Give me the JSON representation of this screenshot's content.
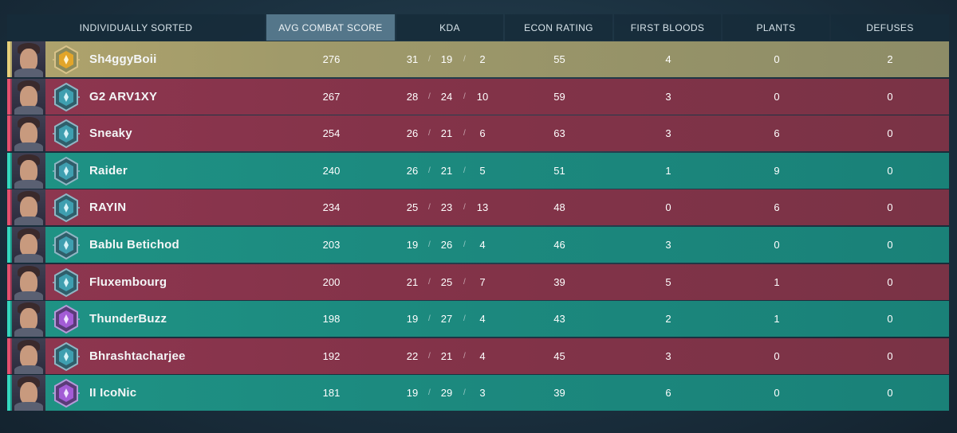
{
  "header": {
    "player_col": "INDIVIDUALLY SORTED",
    "acs_col": "AVG COMBAT SCORE",
    "kda_col": "KDA",
    "econ_col": "ECON RATING",
    "fb_col": "FIRST BLOODS",
    "plants_col": "PLANTS",
    "defuses_col": "DEFUSES"
  },
  "colors": {
    "gold_row": "#a09a6a",
    "red_row": "#843349",
    "teal_row": "#1c8a7f",
    "active_header": "#54768a"
  },
  "players": [
    {
      "name": "Sh4ggyBoii",
      "team": "gold",
      "rank_icon": "gold-rank-icon",
      "acs": "276",
      "k": "31",
      "d": "19",
      "a": "2",
      "econ": "55",
      "fb": "4",
      "plants": "0",
      "defuses": "2"
    },
    {
      "name": "G2 ARV1XY",
      "team": "red",
      "rank_icon": "platinum-rank-icon",
      "acs": "267",
      "k": "28",
      "d": "24",
      "a": "10",
      "econ": "59",
      "fb": "3",
      "plants": "0",
      "defuses": "0"
    },
    {
      "name": "Sneaky",
      "team": "red",
      "rank_icon": "platinum-rank-icon",
      "acs": "254",
      "k": "26",
      "d": "21",
      "a": "6",
      "econ": "63",
      "fb": "3",
      "plants": "6",
      "defuses": "0"
    },
    {
      "name": "Raider",
      "team": "teal",
      "rank_icon": "platinum-rank-icon",
      "acs": "240",
      "k": "26",
      "d": "21",
      "a": "5",
      "econ": "51",
      "fb": "1",
      "plants": "9",
      "defuses": "0"
    },
    {
      "name": "RAYIN",
      "team": "red",
      "rank_icon": "platinum-rank-icon",
      "acs": "234",
      "k": "25",
      "d": "23",
      "a": "13",
      "econ": "48",
      "fb": "0",
      "plants": "6",
      "defuses": "0"
    },
    {
      "name": "Bablu Betichod",
      "team": "teal",
      "rank_icon": "platinum-rank-icon",
      "acs": "203",
      "k": "19",
      "d": "26",
      "a": "4",
      "econ": "46",
      "fb": "3",
      "plants": "0",
      "defuses": "0"
    },
    {
      "name": "Fluxembourg",
      "team": "red",
      "rank_icon": "platinum-rank-icon",
      "acs": "200",
      "k": "21",
      "d": "25",
      "a": "7",
      "econ": "39",
      "fb": "5",
      "plants": "1",
      "defuses": "0"
    },
    {
      "name": "ThunderBuzz",
      "team": "teal",
      "rank_icon": "diamond-rank-icon",
      "acs": "198",
      "k": "19",
      "d": "27",
      "a": "4",
      "econ": "43",
      "fb": "2",
      "plants": "1",
      "defuses": "0"
    },
    {
      "name": "Bhrashtacharjee",
      "team": "red",
      "rank_icon": "platinum-rank-icon",
      "acs": "192",
      "k": "22",
      "d": "21",
      "a": "4",
      "econ": "45",
      "fb": "3",
      "plants": "0",
      "defuses": "0"
    },
    {
      "name": "II IcoNic",
      "team": "teal",
      "rank_icon": "diamond-rank-icon",
      "acs": "181",
      "k": "19",
      "d": "29",
      "a": "3",
      "econ": "39",
      "fb": "6",
      "plants": "0",
      "defuses": "0"
    }
  ]
}
